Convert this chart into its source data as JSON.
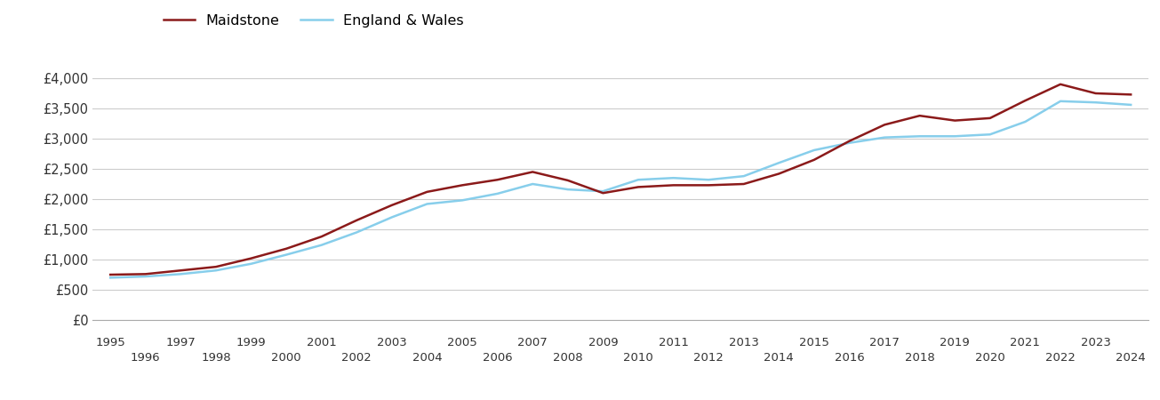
{
  "years": [
    1995,
    1996,
    1997,
    1998,
    1999,
    2000,
    2001,
    2002,
    2003,
    2004,
    2005,
    2006,
    2007,
    2008,
    2009,
    2010,
    2011,
    2012,
    2013,
    2014,
    2015,
    2016,
    2017,
    2018,
    2019,
    2020,
    2021,
    2022,
    2023,
    2024
  ],
  "maidstone": [
    750,
    760,
    820,
    880,
    1020,
    1180,
    1380,
    1650,
    1900,
    2120,
    2230,
    2320,
    2450,
    2310,
    2100,
    2200,
    2230,
    2230,
    2250,
    2420,
    2650,
    2960,
    3230,
    3380,
    3300,
    3340,
    3630,
    3900,
    3750,
    3730
  ],
  "england_wales": [
    700,
    720,
    760,
    820,
    930,
    1080,
    1240,
    1450,
    1700,
    1920,
    1980,
    2090,
    2250,
    2160,
    2130,
    2320,
    2350,
    2320,
    2380,
    2600,
    2810,
    2930,
    3020,
    3040,
    3040,
    3070,
    3280,
    3620,
    3600,
    3560
  ],
  "maidstone_color": "#8B1A1A",
  "england_wales_color": "#87CEEB",
  "background_color": "#ffffff",
  "grid_color": "#cccccc",
  "ylim": [
    0,
    4500
  ],
  "yticks": [
    0,
    500,
    1000,
    1500,
    2000,
    2500,
    3000,
    3500,
    4000
  ],
  "ytick_labels": [
    "£0",
    "£500",
    "£1,000",
    "£1,500",
    "£2,000",
    "£2,500",
    "£3,000",
    "£3,500",
    "£4,000"
  ],
  "legend_maidstone": "Maidstone",
  "legend_england_wales": "England & Wales",
  "line_width": 1.8,
  "xlim_left": 1994.5,
  "xlim_right": 2024.5
}
